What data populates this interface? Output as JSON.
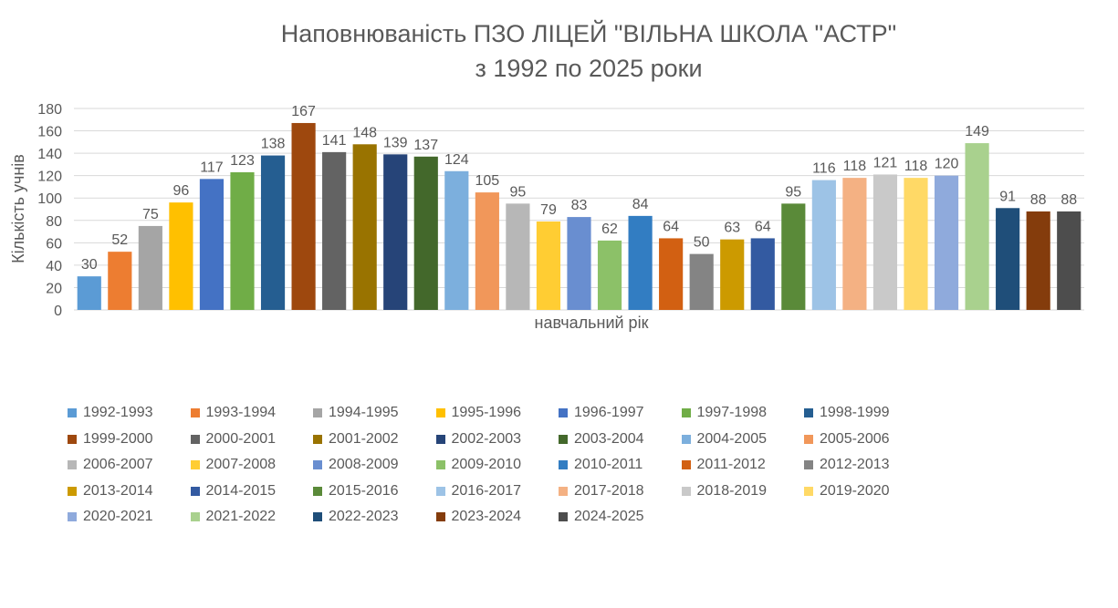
{
  "chart_data": {
    "type": "bar",
    "title": "Наповнюваність ПЗО ЛІЦЕЙ \"ВІЛЬНА ШКОЛА \"АСТР\"",
    "subtitle": "з 1992 по 2025 роки",
    "xlabel": "навчальний рік",
    "ylabel": "Кількість учнів",
    "ylim": [
      0,
      180
    ],
    "yticks": [
      0,
      20,
      40,
      60,
      80,
      100,
      120,
      140,
      160,
      180
    ],
    "grid": true,
    "legend": "bottom",
    "series": [
      {
        "name": "1992-1993",
        "value": 30,
        "color": "#5B9BD5"
      },
      {
        "name": "1993-1994",
        "value": 52,
        "color": "#ED7D31"
      },
      {
        "name": "1994-1995",
        "value": 75,
        "color": "#A5A5A5"
      },
      {
        "name": "1995-1996",
        "value": 96,
        "color": "#FFC000"
      },
      {
        "name": "1996-1997",
        "value": 117,
        "color": "#4472C4"
      },
      {
        "name": "1997-1998",
        "value": 123,
        "color": "#70AD47"
      },
      {
        "name": "1998-1999",
        "value": 138,
        "color": "#255E91"
      },
      {
        "name": "1999-2000",
        "value": 167,
        "color": "#9E480E"
      },
      {
        "name": "2000-2001",
        "value": 141,
        "color": "#636363"
      },
      {
        "name": "2001-2002",
        "value": 148,
        "color": "#997300"
      },
      {
        "name": "2002-2003",
        "value": 139,
        "color": "#264478"
      },
      {
        "name": "2003-2004",
        "value": 137,
        "color": "#43682B"
      },
      {
        "name": "2004-2005",
        "value": 124,
        "color": "#7CAFDD"
      },
      {
        "name": "2005-2006",
        "value": 105,
        "color": "#F1975A"
      },
      {
        "name": "2006-2007",
        "value": 95,
        "color": "#B7B7B7"
      },
      {
        "name": "2007-2008",
        "value": 79,
        "color": "#FFCD33"
      },
      {
        "name": "2008-2009",
        "value": 83,
        "color": "#698ED0"
      },
      {
        "name": "2009-2010",
        "value": 62,
        "color": "#8CC168"
      },
      {
        "name": "2010-2011",
        "value": 84,
        "color": "#327DC2"
      },
      {
        "name": "2011-2012",
        "value": 64,
        "color": "#D26012"
      },
      {
        "name": "2012-2013",
        "value": 50,
        "color": "#848484"
      },
      {
        "name": "2013-2014",
        "value": 63,
        "color": "#CC9A00"
      },
      {
        "name": "2014-2015",
        "value": 64,
        "color": "#335AA1"
      },
      {
        "name": "2015-2016",
        "value": 95,
        "color": "#5A8A39"
      },
      {
        "name": "2016-2017",
        "value": 116,
        "color": "#9DC3E6"
      },
      {
        "name": "2017-2018",
        "value": 118,
        "color": "#F4B183"
      },
      {
        "name": "2018-2019",
        "value": 121,
        "color": "#C9C9C9"
      },
      {
        "name": "2019-2020",
        "value": 118,
        "color": "#FFD966"
      },
      {
        "name": "2020-2021",
        "value": 120,
        "color": "#8FAADC"
      },
      {
        "name": "2021-2022",
        "value": 149,
        "color": "#A9D18E"
      },
      {
        "name": "2022-2023",
        "value": 91,
        "color": "#1F4E79"
      },
      {
        "name": "2023-2024",
        "value": 88,
        "color": "#843C0C"
      },
      {
        "name": "2024-2025",
        "value": 88,
        "color": "#4D4D4D"
      }
    ]
  }
}
